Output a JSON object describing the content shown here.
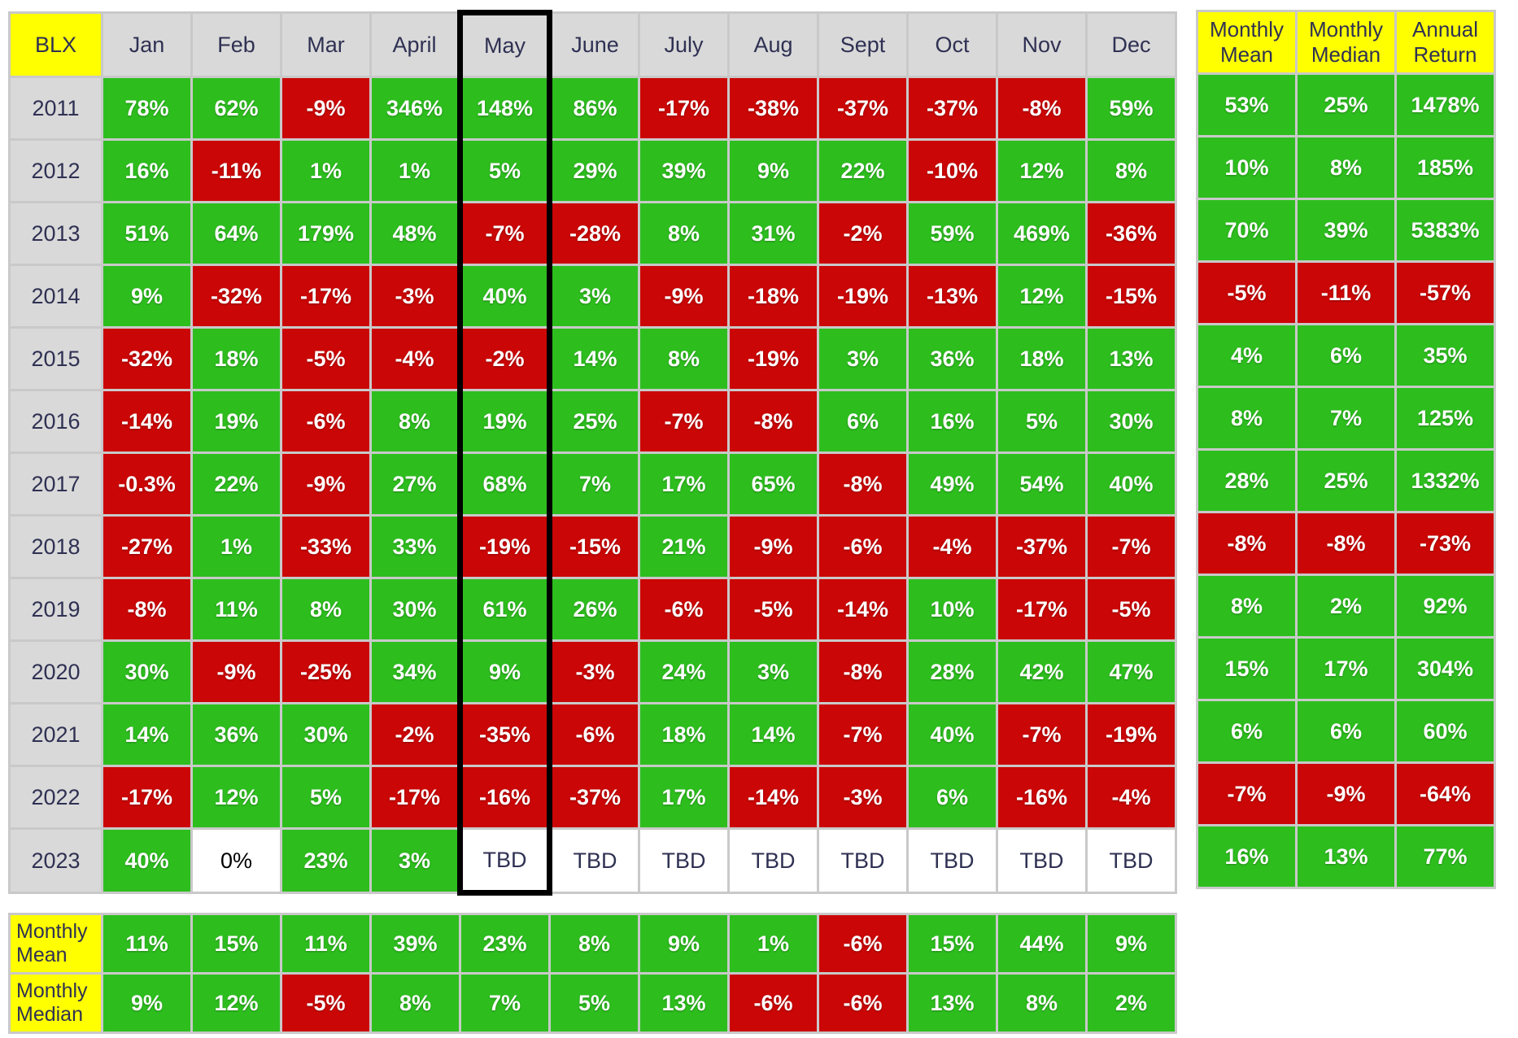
{
  "colors": {
    "positive_cell": "#2dbe1e",
    "negative_cell": "#cb0606",
    "header_bg": "#d9d9d9",
    "label_yellow": "#ffff00",
    "header_text": "#2f3153",
    "cell_text": "#ffffff",
    "zero_cell_bg": "#ffffff",
    "tbd_text": "#2f3153",
    "grid_line": "#c9c9c9",
    "highlight_border": "#000000"
  },
  "chart_data": {
    "type": "heatmap",
    "title": "BLX",
    "columns": [
      "Jan",
      "Feb",
      "Mar",
      "April",
      "May",
      "June",
      "July",
      "Aug",
      "Sept",
      "Oct",
      "Nov",
      "Dec"
    ],
    "summary_columns": [
      "Monthly Mean",
      "Monthly Median",
      "Annual Return"
    ],
    "bottom_labels": [
      "Monthly Mean",
      "Monthly Median"
    ],
    "highlighted_column": "May",
    "years": [
      "2011",
      "2012",
      "2013",
      "2014",
      "2015",
      "2016",
      "2017",
      "2018",
      "2019",
      "2020",
      "2021",
      "2022",
      "2023"
    ],
    "values": [
      [
        "78%",
        "62%",
        "-9%",
        "346%",
        "148%",
        "86%",
        "-17%",
        "-38%",
        "-37%",
        "-37%",
        "-8%",
        "59%"
      ],
      [
        "16%",
        "-11%",
        "1%",
        "1%",
        "5%",
        "29%",
        "39%",
        "9%",
        "22%",
        "-10%",
        "12%",
        "8%"
      ],
      [
        "51%",
        "64%",
        "179%",
        "48%",
        "-7%",
        "-28%",
        "8%",
        "31%",
        "-2%",
        "59%",
        "469%",
        "-36%"
      ],
      [
        "9%",
        "-32%",
        "-17%",
        "-3%",
        "40%",
        "3%",
        "-9%",
        "-18%",
        "-19%",
        "-13%",
        "12%",
        "-15%"
      ],
      [
        "-32%",
        "18%",
        "-5%",
        "-4%",
        "-2%",
        "14%",
        "8%",
        "-19%",
        "3%",
        "36%",
        "18%",
        "13%"
      ],
      [
        "-14%",
        "19%",
        "-6%",
        "8%",
        "19%",
        "25%",
        "-7%",
        "-8%",
        "6%",
        "16%",
        "5%",
        "30%"
      ],
      [
        "-0.3%",
        "22%",
        "-9%",
        "27%",
        "68%",
        "7%",
        "17%",
        "65%",
        "-8%",
        "49%",
        "54%",
        "40%"
      ],
      [
        "-27%",
        "1%",
        "-33%",
        "33%",
        "-19%",
        "-15%",
        "21%",
        "-9%",
        "-6%",
        "-4%",
        "-37%",
        "-7%"
      ],
      [
        "-8%",
        "11%",
        "8%",
        "30%",
        "61%",
        "26%",
        "-6%",
        "-5%",
        "-14%",
        "10%",
        "-17%",
        "-5%"
      ],
      [
        "30%",
        "-9%",
        "-25%",
        "34%",
        "9%",
        "-3%",
        "24%",
        "3%",
        "-8%",
        "28%",
        "42%",
        "47%"
      ],
      [
        "14%",
        "36%",
        "30%",
        "-2%",
        "-35%",
        "-6%",
        "18%",
        "14%",
        "-7%",
        "40%",
        "-7%",
        "-19%"
      ],
      [
        "-17%",
        "12%",
        "5%",
        "-17%",
        "-16%",
        "-37%",
        "17%",
        "-14%",
        "-3%",
        "6%",
        "-16%",
        "-4%"
      ],
      [
        "40%",
        "0%",
        "23%",
        "3%",
        "TBD",
        "TBD",
        "TBD",
        "TBD",
        "TBD",
        "TBD",
        "TBD",
        "TBD"
      ]
    ],
    "summary_values": [
      [
        "53%",
        "25%",
        "1478%"
      ],
      [
        "10%",
        "8%",
        "185%"
      ],
      [
        "70%",
        "39%",
        "5383%"
      ],
      [
        "-5%",
        "-11%",
        "-57%"
      ],
      [
        "4%",
        "6%",
        "35%"
      ],
      [
        "8%",
        "7%",
        "125%"
      ],
      [
        "28%",
        "25%",
        "1332%"
      ],
      [
        "-8%",
        "-8%",
        "-73%"
      ],
      [
        "8%",
        "2%",
        "92%"
      ],
      [
        "15%",
        "17%",
        "304%"
      ],
      [
        "6%",
        "6%",
        "60%"
      ],
      [
        "-7%",
        "-9%",
        "-64%"
      ],
      [
        "16%",
        "13%",
        "77%"
      ]
    ],
    "bottom_values": [
      [
        "11%",
        "15%",
        "11%",
        "39%",
        "23%",
        "8%",
        "9%",
        "1%",
        "-6%",
        "15%",
        "44%",
        "9%"
      ],
      [
        "9%",
        "12%",
        "-5%",
        "8%",
        "7%",
        "5%",
        "13%",
        "-6%",
        "-6%",
        "13%",
        "8%",
        "2%"
      ]
    ]
  }
}
